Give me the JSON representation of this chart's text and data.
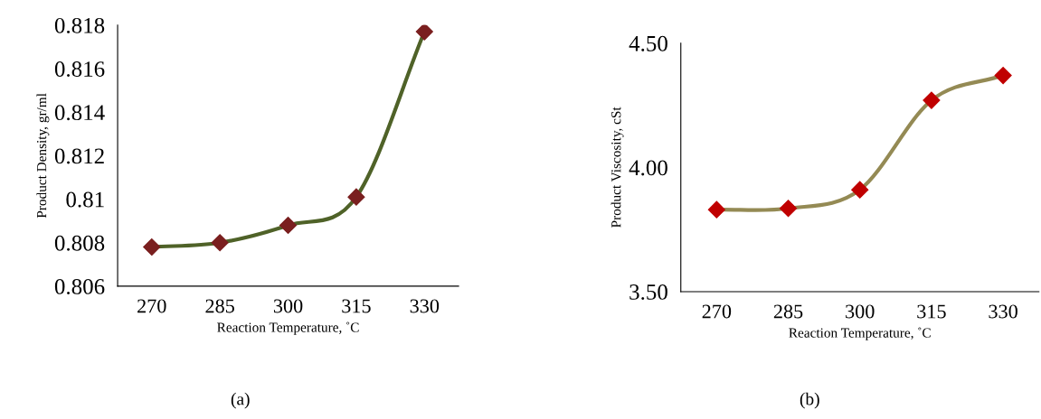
{
  "chart_data": [
    {
      "type": "line",
      "xlabel": "Reaction Temperature, ˚C",
      "ylabel": "Product Density, gr/ml",
      "categories": [
        "270",
        "285",
        "300",
        "315",
        "330"
      ],
      "series": [
        {
          "color": "#4f6228",
          "marker": "none",
          "values": [
            0.8078,
            0.808,
            0.8088,
            0.8101,
            0.8177
          ]
        },
        {
          "type": "scatter",
          "color": "#7a1f1f",
          "marker": "diamond",
          "values": [
            0.8078,
            0.808,
            0.8088,
            0.8101,
            0.8177
          ]
        }
      ],
      "ylim": [
        0.806,
        0.818
      ],
      "yticks": [
        0.806,
        0.808,
        0.81,
        0.812,
        0.814,
        0.816,
        0.818
      ],
      "annotations": [
        "(a)"
      ]
    },
    {
      "type": "line",
      "xlabel": "Reaction Temperature, ˚C",
      "ylabel": "Product Viscosity, cSt",
      "categories": [
        "270",
        "285",
        "300",
        "315",
        "330"
      ],
      "series": [
        {
          "color": "#948a54",
          "marker": "none",
          "values": [
            3.83,
            3.835,
            3.91,
            4.27,
            4.37
          ]
        },
        {
          "type": "scatter",
          "color": "#c00000",
          "marker": "diamond",
          "values": [
            3.83,
            3.835,
            3.91,
            4.27,
            4.37
          ]
        }
      ],
      "ylim": [
        3.5,
        4.5
      ],
      "yticks": [
        {
          "value": 3.5,
          "label": "3.50"
        },
        {
          "value": 4.0,
          "label": "4.00"
        },
        {
          "value": 4.5,
          "label": "4.50"
        }
      ],
      "annotations": [
        "(b)"
      ]
    }
  ]
}
